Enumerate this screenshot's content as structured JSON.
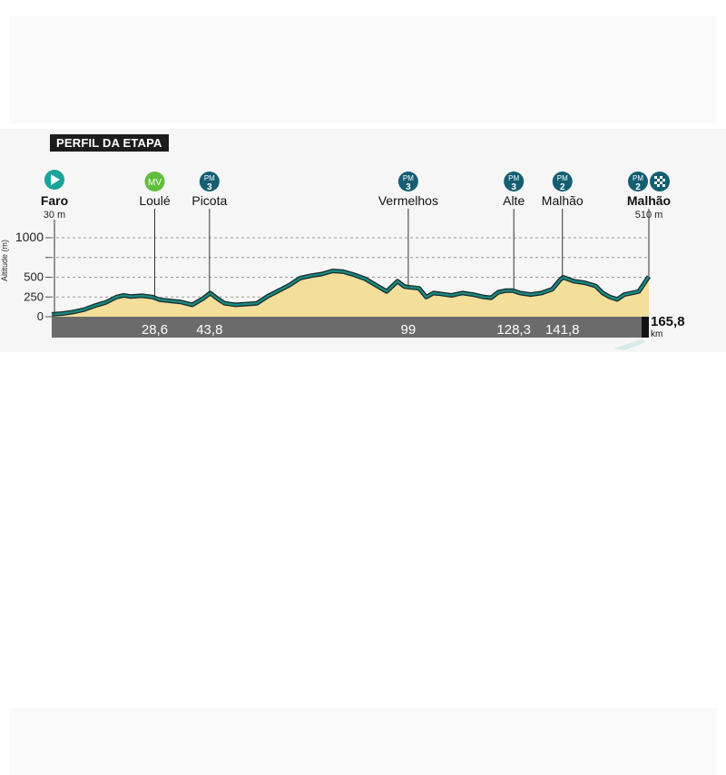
{
  "title": "PERFIL DA ETAPA",
  "colors": {
    "profile_fill": "#f3de9a",
    "profile_line": "#1a8a80",
    "profile_line_outline": "#1b2b2c",
    "axis_bar": "#6b6b6b",
    "start_icon": "#1aa39a",
    "sprint_icon": "#5fbf3b",
    "climb_icon": "#145e72"
  },
  "chart_data": {
    "type": "area",
    "xlabel": "km",
    "ylabel": "Altitude (m)",
    "xlim": [
      0,
      165.8
    ],
    "ylim": [
      0,
      1000
    ],
    "y_ticks": [
      0,
      250,
      500,
      750,
      1000
    ],
    "y_tick_labels": [
      "0",
      "250",
      "500",
      "",
      "1000"
    ],
    "gridlines": [
      250,
      500,
      750,
      1000
    ],
    "km_markers": [
      {
        "km": 28.6,
        "label": "28,6"
      },
      {
        "km": 43.8,
        "label": "43,8"
      },
      {
        "km": 99,
        "label": "99"
      },
      {
        "km": 128.3,
        "label": "128,3"
      },
      {
        "km": 141.8,
        "label": "141,8"
      }
    ],
    "finish_km_label": "165,8",
    "finish_km_unit": "km",
    "waypoints": [
      {
        "name": "Faro",
        "km": 0,
        "type": "start",
        "icon": "play-icon",
        "altitude_label": "30 m"
      },
      {
        "name": "Loulé",
        "km": 28.6,
        "type": "sprint",
        "badge": "MV"
      },
      {
        "name": "Picota",
        "km": 43.8,
        "type": "climb",
        "badge": "PM",
        "category": "3"
      },
      {
        "name": "Vermelhos",
        "km": 99,
        "type": "climb",
        "badge": "PM",
        "category": "3"
      },
      {
        "name": "Alte",
        "km": 128.3,
        "type": "climb",
        "badge": "PM",
        "category": "3"
      },
      {
        "name": "Malhão",
        "km": 141.8,
        "type": "climb",
        "badge": "PM",
        "category": "2"
      },
      {
        "name": "Malhão",
        "km": 165.8,
        "type": "finish",
        "badge": "PM",
        "category": "2",
        "icon": "checkered-flag-icon",
        "altitude_label": "510 m"
      }
    ],
    "profile": {
      "x": [
        0,
        3,
        6,
        9,
        12,
        15,
        18,
        20,
        22,
        25,
        28,
        30,
        33,
        36,
        39,
        42,
        44,
        46,
        48,
        51,
        54,
        57,
        60,
        63,
        66,
        69,
        72,
        75,
        78,
        81,
        84,
        87,
        90,
        93,
        96,
        98,
        100,
        102,
        104,
        106,
        108,
        111,
        114,
        117,
        120,
        122,
        124,
        126,
        128,
        130,
        133,
        136,
        139,
        141,
        142,
        145,
        148,
        151,
        153,
        155,
        157,
        159,
        161,
        163,
        165.8
      ],
      "y": [
        30,
        40,
        60,
        90,
        140,
        180,
        250,
        270,
        255,
        265,
        250,
        215,
        200,
        185,
        150,
        230,
        300,
        230,
        170,
        150,
        160,
        170,
        260,
        330,
        400,
        490,
        520,
        540,
        580,
        570,
        530,
        480,
        400,
        320,
        450,
        380,
        370,
        360,
        250,
        300,
        290,
        270,
        300,
        280,
        250,
        240,
        310,
        330,
        330,
        300,
        280,
        300,
        350,
        460,
        500,
        450,
        430,
        390,
        300,
        250,
        220,
        280,
        300,
        320,
        510
      ]
    }
  }
}
